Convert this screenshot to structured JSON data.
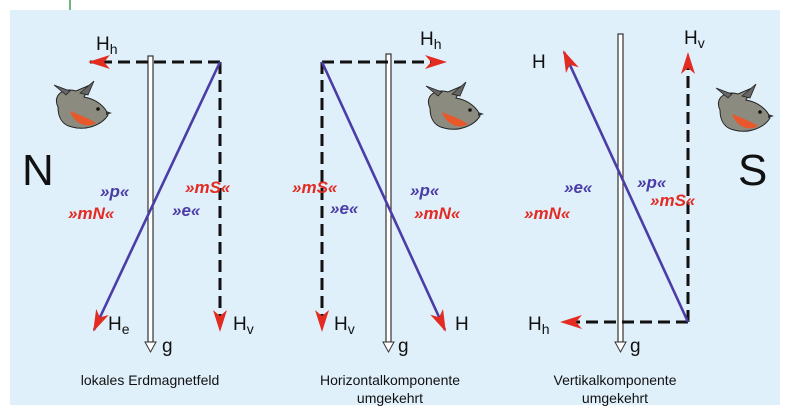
{
  "poles": {
    "left": "N",
    "right": "S"
  },
  "panels": [
    {
      "horizontal": {
        "main": "H",
        "sub": "h"
      },
      "vertical": {
        "main": "H",
        "sub": "v"
      },
      "resultant": {
        "main": "H",
        "sub": "e"
      },
      "gravity": "g",
      "tags": {
        "p": "»p«",
        "mN": "»mN«",
        "mS": "»mS«",
        "e": "»e«"
      },
      "caption": [
        "lokales Erdmagnetfeld"
      ]
    },
    {
      "horizontal": {
        "main": "H",
        "sub": "h"
      },
      "vertical": {
        "main": "H",
        "sub": "v"
      },
      "resultant": {
        "main": "H"
      },
      "gravity": "g",
      "tags": {
        "p": "»p«",
        "mN": "»mN«",
        "mS": "»mS«",
        "e": "»e«"
      },
      "caption": [
        "Horizontalkomponente",
        "umgekehrt"
      ]
    },
    {
      "horizontal": {
        "main": "H",
        "sub": "h"
      },
      "vertical": {
        "main": "H",
        "sub": "v"
      },
      "resultant": {
        "main": "H"
      },
      "gravity": "g",
      "tags": {
        "p": "»p«",
        "mN": "»mN«",
        "mS": "»mS«",
        "e": "»e«"
      },
      "caption": [
        "Vertikalkomponente",
        "umgekehrt"
      ]
    }
  ]
}
